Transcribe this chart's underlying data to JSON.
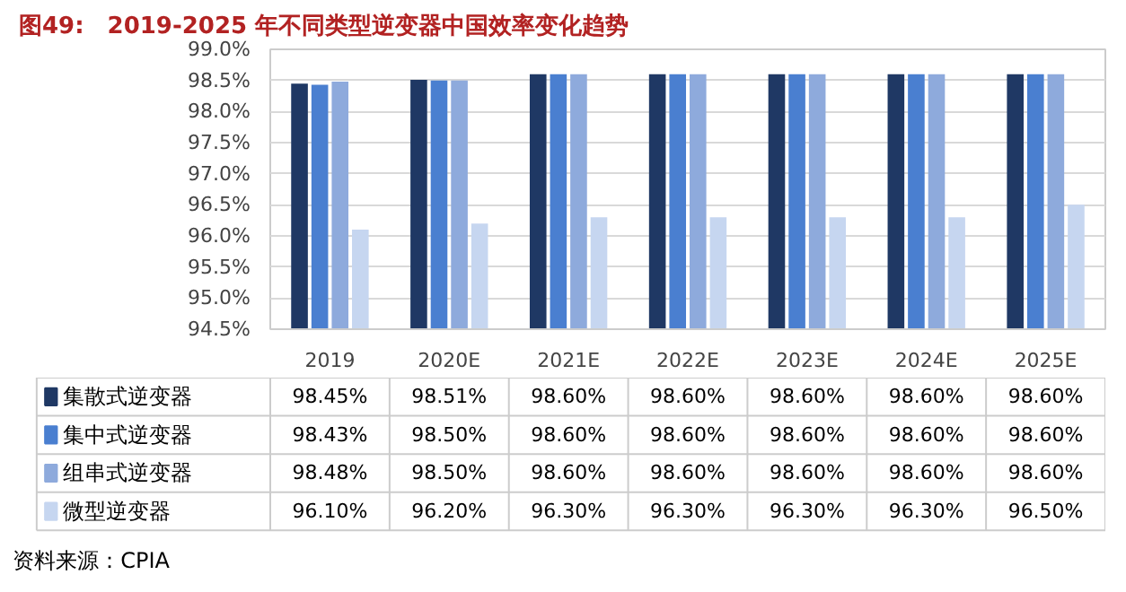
{
  "chart_data": {
    "type": "bar",
    "title": "图49:　2019-2025 年不同类型逆变器中国效率变化趋势",
    "categories": [
      "2019",
      "2020E",
      "2021E",
      "2022E",
      "2023E",
      "2024E",
      "2025E"
    ],
    "series": [
      {
        "name": "集散式逆变器",
        "color": "#1f3864",
        "values": [
          98.45,
          98.51,
          98.6,
          98.6,
          98.6,
          98.6,
          98.6
        ],
        "value_labels": [
          "98.45%",
          "98.51%",
          "98.60%",
          "98.60%",
          "98.60%",
          "98.60%",
          "98.60%"
        ]
      },
      {
        "name": "集中式逆变器",
        "color": "#4a7fd0",
        "values": [
          98.43,
          98.5,
          98.6,
          98.6,
          98.6,
          98.6,
          98.6
        ],
        "value_labels": [
          "98.43%",
          "98.50%",
          "98.60%",
          "98.60%",
          "98.60%",
          "98.60%",
          "98.60%"
        ]
      },
      {
        "name": "组串式逆变器",
        "color": "#8eaadc",
        "values": [
          98.48,
          98.5,
          98.6,
          98.6,
          98.6,
          98.6,
          98.6
        ],
        "value_labels": [
          "98.48%",
          "98.50%",
          "98.60%",
          "98.60%",
          "98.60%",
          "98.60%",
          "98.60%"
        ]
      },
      {
        "name": "微型逆变器",
        "color": "#c6d6f0",
        "values": [
          96.1,
          96.2,
          96.3,
          96.3,
          96.3,
          96.3,
          96.5
        ],
        "value_labels": [
          "96.10%",
          "96.20%",
          "96.30%",
          "96.30%",
          "96.30%",
          "96.30%",
          "96.50%"
        ]
      }
    ],
    "ylim": [
      94.5,
      99.0
    ],
    "yticks": [
      {
        "value": 94.5,
        "label": "94.5%"
      },
      {
        "value": 95.0,
        "label": "95.0%"
      },
      {
        "value": 95.5,
        "label": "95.5%"
      },
      {
        "value": 96.0,
        "label": "96.0%"
      },
      {
        "value": 96.5,
        "label": "96.5%"
      },
      {
        "value": 97.0,
        "label": "97.0%"
      },
      {
        "value": 97.5,
        "label": "97.5%"
      },
      {
        "value": 98.0,
        "label": "98.0%"
      },
      {
        "value": 98.5,
        "label": "98.5%"
      },
      {
        "value": 99.0,
        "label": "99.0%"
      }
    ],
    "grid": "y",
    "legend": "bottom",
    "annotations": [
      "资料来源：CPIA"
    ]
  }
}
